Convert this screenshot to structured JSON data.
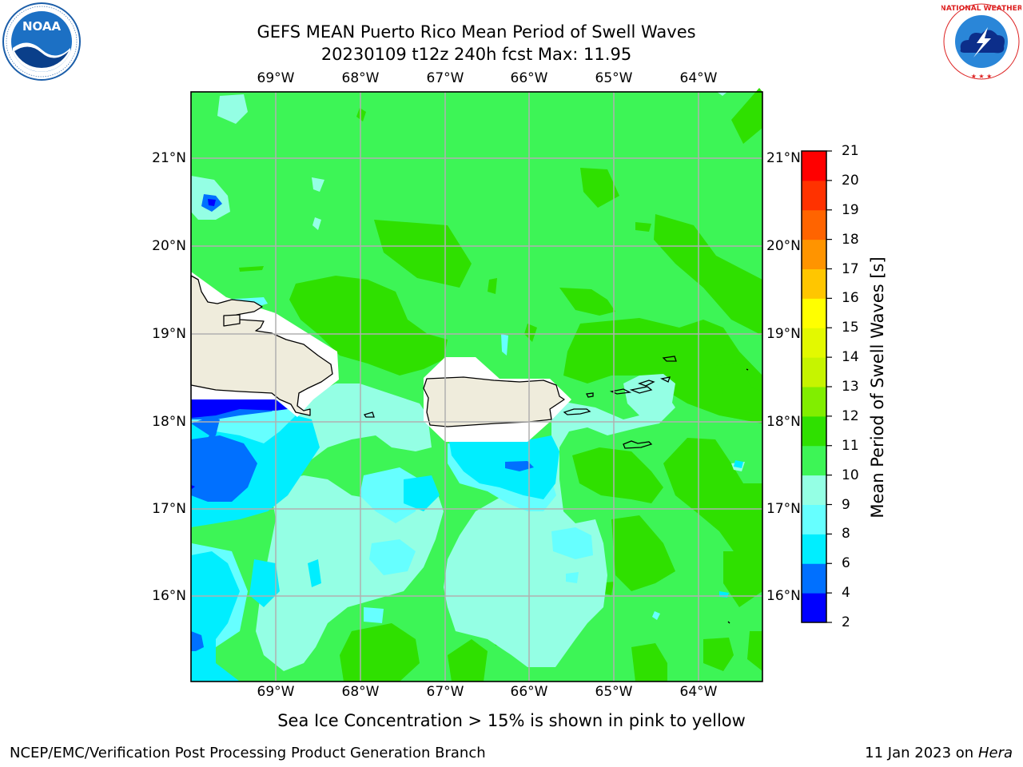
{
  "header": {
    "title_line1": "GEFS MEAN Puerto Rico Mean Period of Swell Waves",
    "title_line2": "20230109 t12z 240h fcst   Max: 11.95"
  },
  "logos": {
    "left": "NOAA",
    "right": "NATIONAL WEATHER SERVICE"
  },
  "map": {
    "lon_labels": [
      "69°W",
      "68°W",
      "67°W",
      "66°W",
      "65°W",
      "64°W"
    ],
    "lat_labels": [
      "21°N",
      "20°N",
      "19°N",
      "18°N",
      "17°N",
      "16°N"
    ],
    "land_color": "#efecdc",
    "region": "Puerto Rico"
  },
  "colorbar": {
    "title": "Mean Period of Swell Waves [s]",
    "ticks": [
      "21",
      "20",
      "19",
      "18",
      "17",
      "16",
      "15",
      "14",
      "13",
      "12",
      "11",
      "10",
      "9",
      "8",
      "6",
      "4",
      "2"
    ],
    "colors_bottom_to_top": [
      "#0000ff",
      "#0070ff",
      "#00eeff",
      "#66ffff",
      "#94ffe4",
      "#3df556",
      "#2fe000",
      "#81ee00",
      "#c6f400",
      "#e3f900",
      "#ffff00",
      "#ffc600",
      "#ff9400",
      "#ff6400",
      "#ff3200",
      "#ff0000"
    ]
  },
  "caption": "Sea Ice Concentration > 15% is shown in pink to yellow",
  "footer": {
    "left": "NCEP/EMC/Verification Post Processing Product Generation Branch",
    "right_date": "11 Jan 2023 on ",
    "right_host": "Hera"
  }
}
